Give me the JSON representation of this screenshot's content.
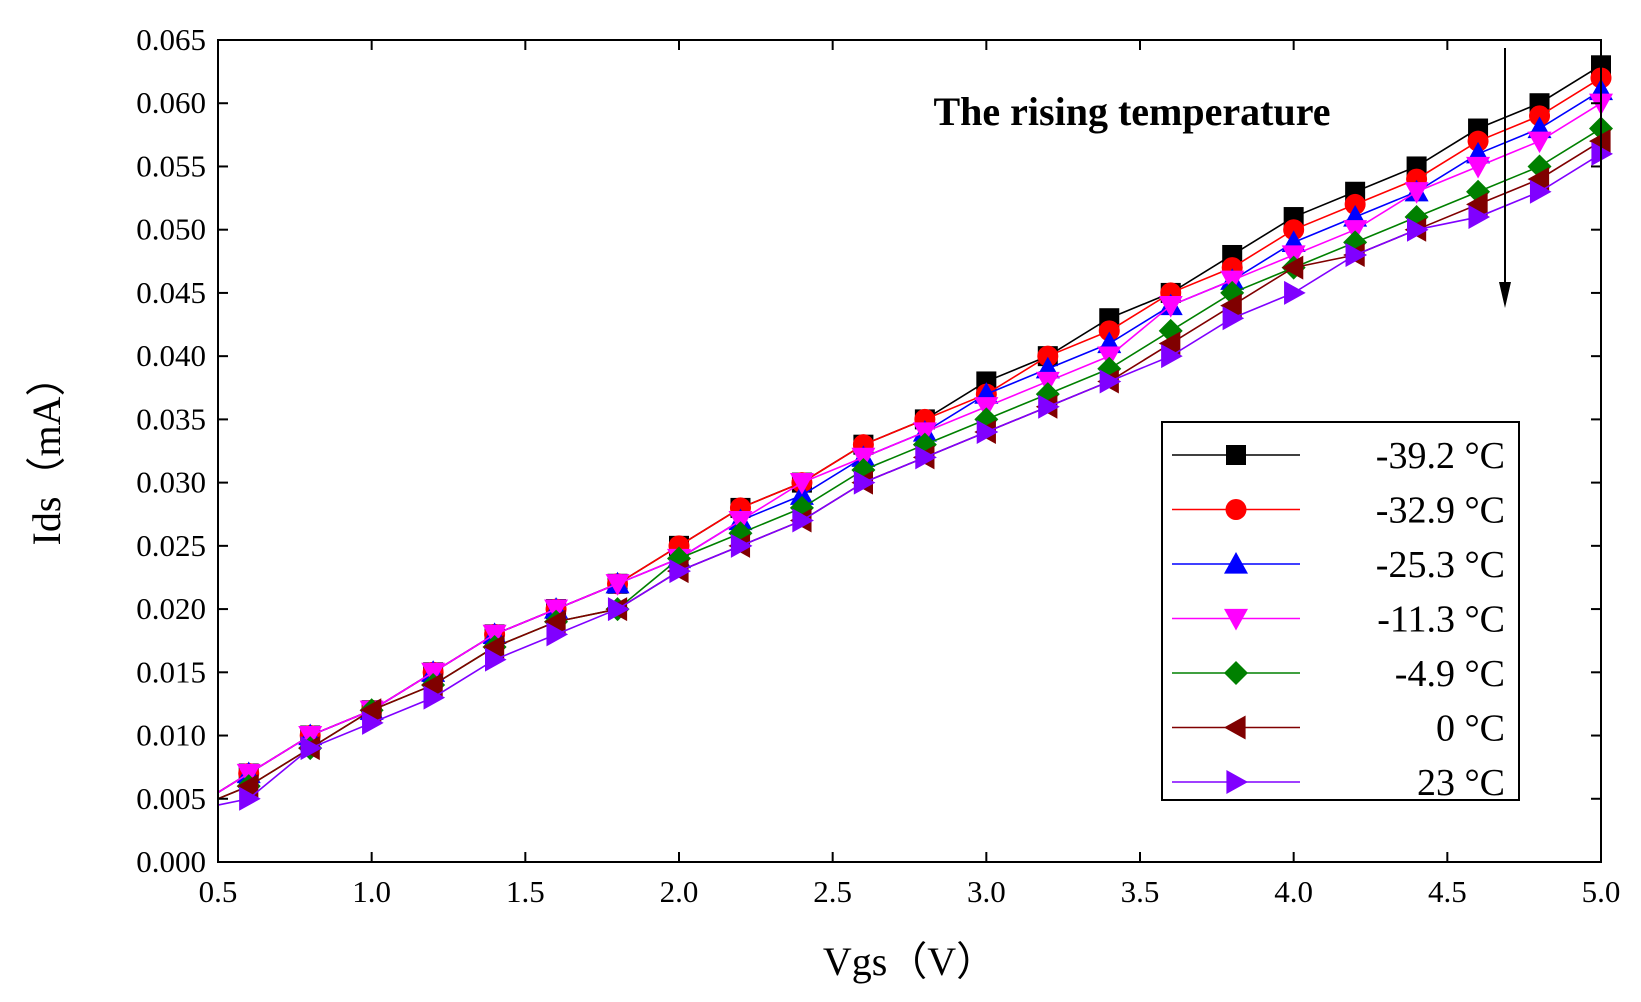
{
  "chart_data": {
    "type": "line",
    "title": "",
    "xlabel": "Vgs（V）",
    "ylabel": "Ids（mA）",
    "xlim": [
      0.5,
      5.0
    ],
    "ylim": [
      0.0,
      0.065
    ],
    "xticks": [
      "0.5",
      "1.0",
      "1.5",
      "2.0",
      "2.5",
      "3.0",
      "3.5",
      "4.0",
      "4.5",
      "5.0"
    ],
    "yticks": [
      "0.000",
      "0.005",
      "0.010",
      "0.015",
      "0.020",
      "0.025",
      "0.030",
      "0.035",
      "0.040",
      "0.045",
      "0.050",
      "0.055",
      "0.060",
      "0.065"
    ],
    "grid": false,
    "legend_position": "bottom-right",
    "annotation": "The rising temperature",
    "x": [
      0.5,
      0.6,
      0.8,
      1.0,
      1.2,
      1.4,
      1.6,
      1.8,
      2.0,
      2.2,
      2.4,
      2.6,
      2.8,
      3.0,
      3.2,
      3.4,
      3.6,
      3.8,
      4.0,
      4.2,
      4.4,
      4.6,
      4.8,
      5.0
    ],
    "series": [
      {
        "name": "-39.2 °C",
        "color": "#000000",
        "marker": "square",
        "values": [
          0.0055,
          0.007,
          0.01,
          0.012,
          0.015,
          0.018,
          0.02,
          0.022,
          0.025,
          0.028,
          0.03,
          0.033,
          0.035,
          0.038,
          0.04,
          0.043,
          0.045,
          0.048,
          0.051,
          0.053,
          0.055,
          0.058,
          0.06,
          0.063
        ]
      },
      {
        "name": "-32.9 °C",
        "color": "#ff0000",
        "marker": "circle",
        "values": [
          0.0055,
          0.007,
          0.01,
          0.012,
          0.015,
          0.018,
          0.02,
          0.022,
          0.025,
          0.028,
          0.03,
          0.033,
          0.035,
          0.037,
          0.04,
          0.042,
          0.045,
          0.047,
          0.05,
          0.052,
          0.054,
          0.057,
          0.059,
          0.062
        ]
      },
      {
        "name": "-25.3 °C",
        "color": "#0000ff",
        "marker": "triangle-up",
        "values": [
          0.0055,
          0.007,
          0.01,
          0.012,
          0.015,
          0.018,
          0.02,
          0.022,
          0.024,
          0.027,
          0.029,
          0.032,
          0.034,
          0.037,
          0.039,
          0.041,
          0.044,
          0.046,
          0.049,
          0.051,
          0.053,
          0.056,
          0.058,
          0.061
        ]
      },
      {
        "name": "-11.3 °C",
        "color": "#ff00ff",
        "marker": "triangle-down",
        "values": [
          0.0055,
          0.007,
          0.01,
          0.012,
          0.015,
          0.018,
          0.02,
          0.022,
          0.024,
          0.027,
          0.03,
          0.032,
          0.034,
          0.036,
          0.038,
          0.04,
          0.044,
          0.046,
          0.048,
          0.05,
          0.053,
          0.055,
          0.057,
          0.06
        ]
      },
      {
        "name": "-4.9 °C",
        "color": "#008000",
        "marker": "diamond",
        "values": [
          0.005,
          0.006,
          0.009,
          0.012,
          0.014,
          0.017,
          0.019,
          0.02,
          0.024,
          0.026,
          0.028,
          0.031,
          0.033,
          0.035,
          0.037,
          0.039,
          0.042,
          0.045,
          0.047,
          0.049,
          0.051,
          0.053,
          0.055,
          0.058
        ]
      },
      {
        "name": "0 °C",
        "color": "#800000",
        "marker": "triangle-left",
        "values": [
          0.005,
          0.006,
          0.009,
          0.012,
          0.014,
          0.017,
          0.019,
          0.02,
          0.023,
          0.025,
          0.027,
          0.03,
          0.032,
          0.034,
          0.036,
          0.038,
          0.041,
          0.044,
          0.047,
          0.048,
          0.05,
          0.052,
          0.054,
          0.057
        ]
      },
      {
        "name": "23 °C",
        "color": "#8000ff",
        "marker": "triangle-right",
        "values": [
          0.0045,
          0.005,
          0.009,
          0.011,
          0.013,
          0.016,
          0.018,
          0.02,
          0.023,
          0.025,
          0.027,
          0.03,
          0.032,
          0.034,
          0.036,
          0.038,
          0.04,
          0.043,
          0.045,
          0.048,
          0.05,
          0.051,
          0.053,
          0.056
        ]
      }
    ]
  }
}
